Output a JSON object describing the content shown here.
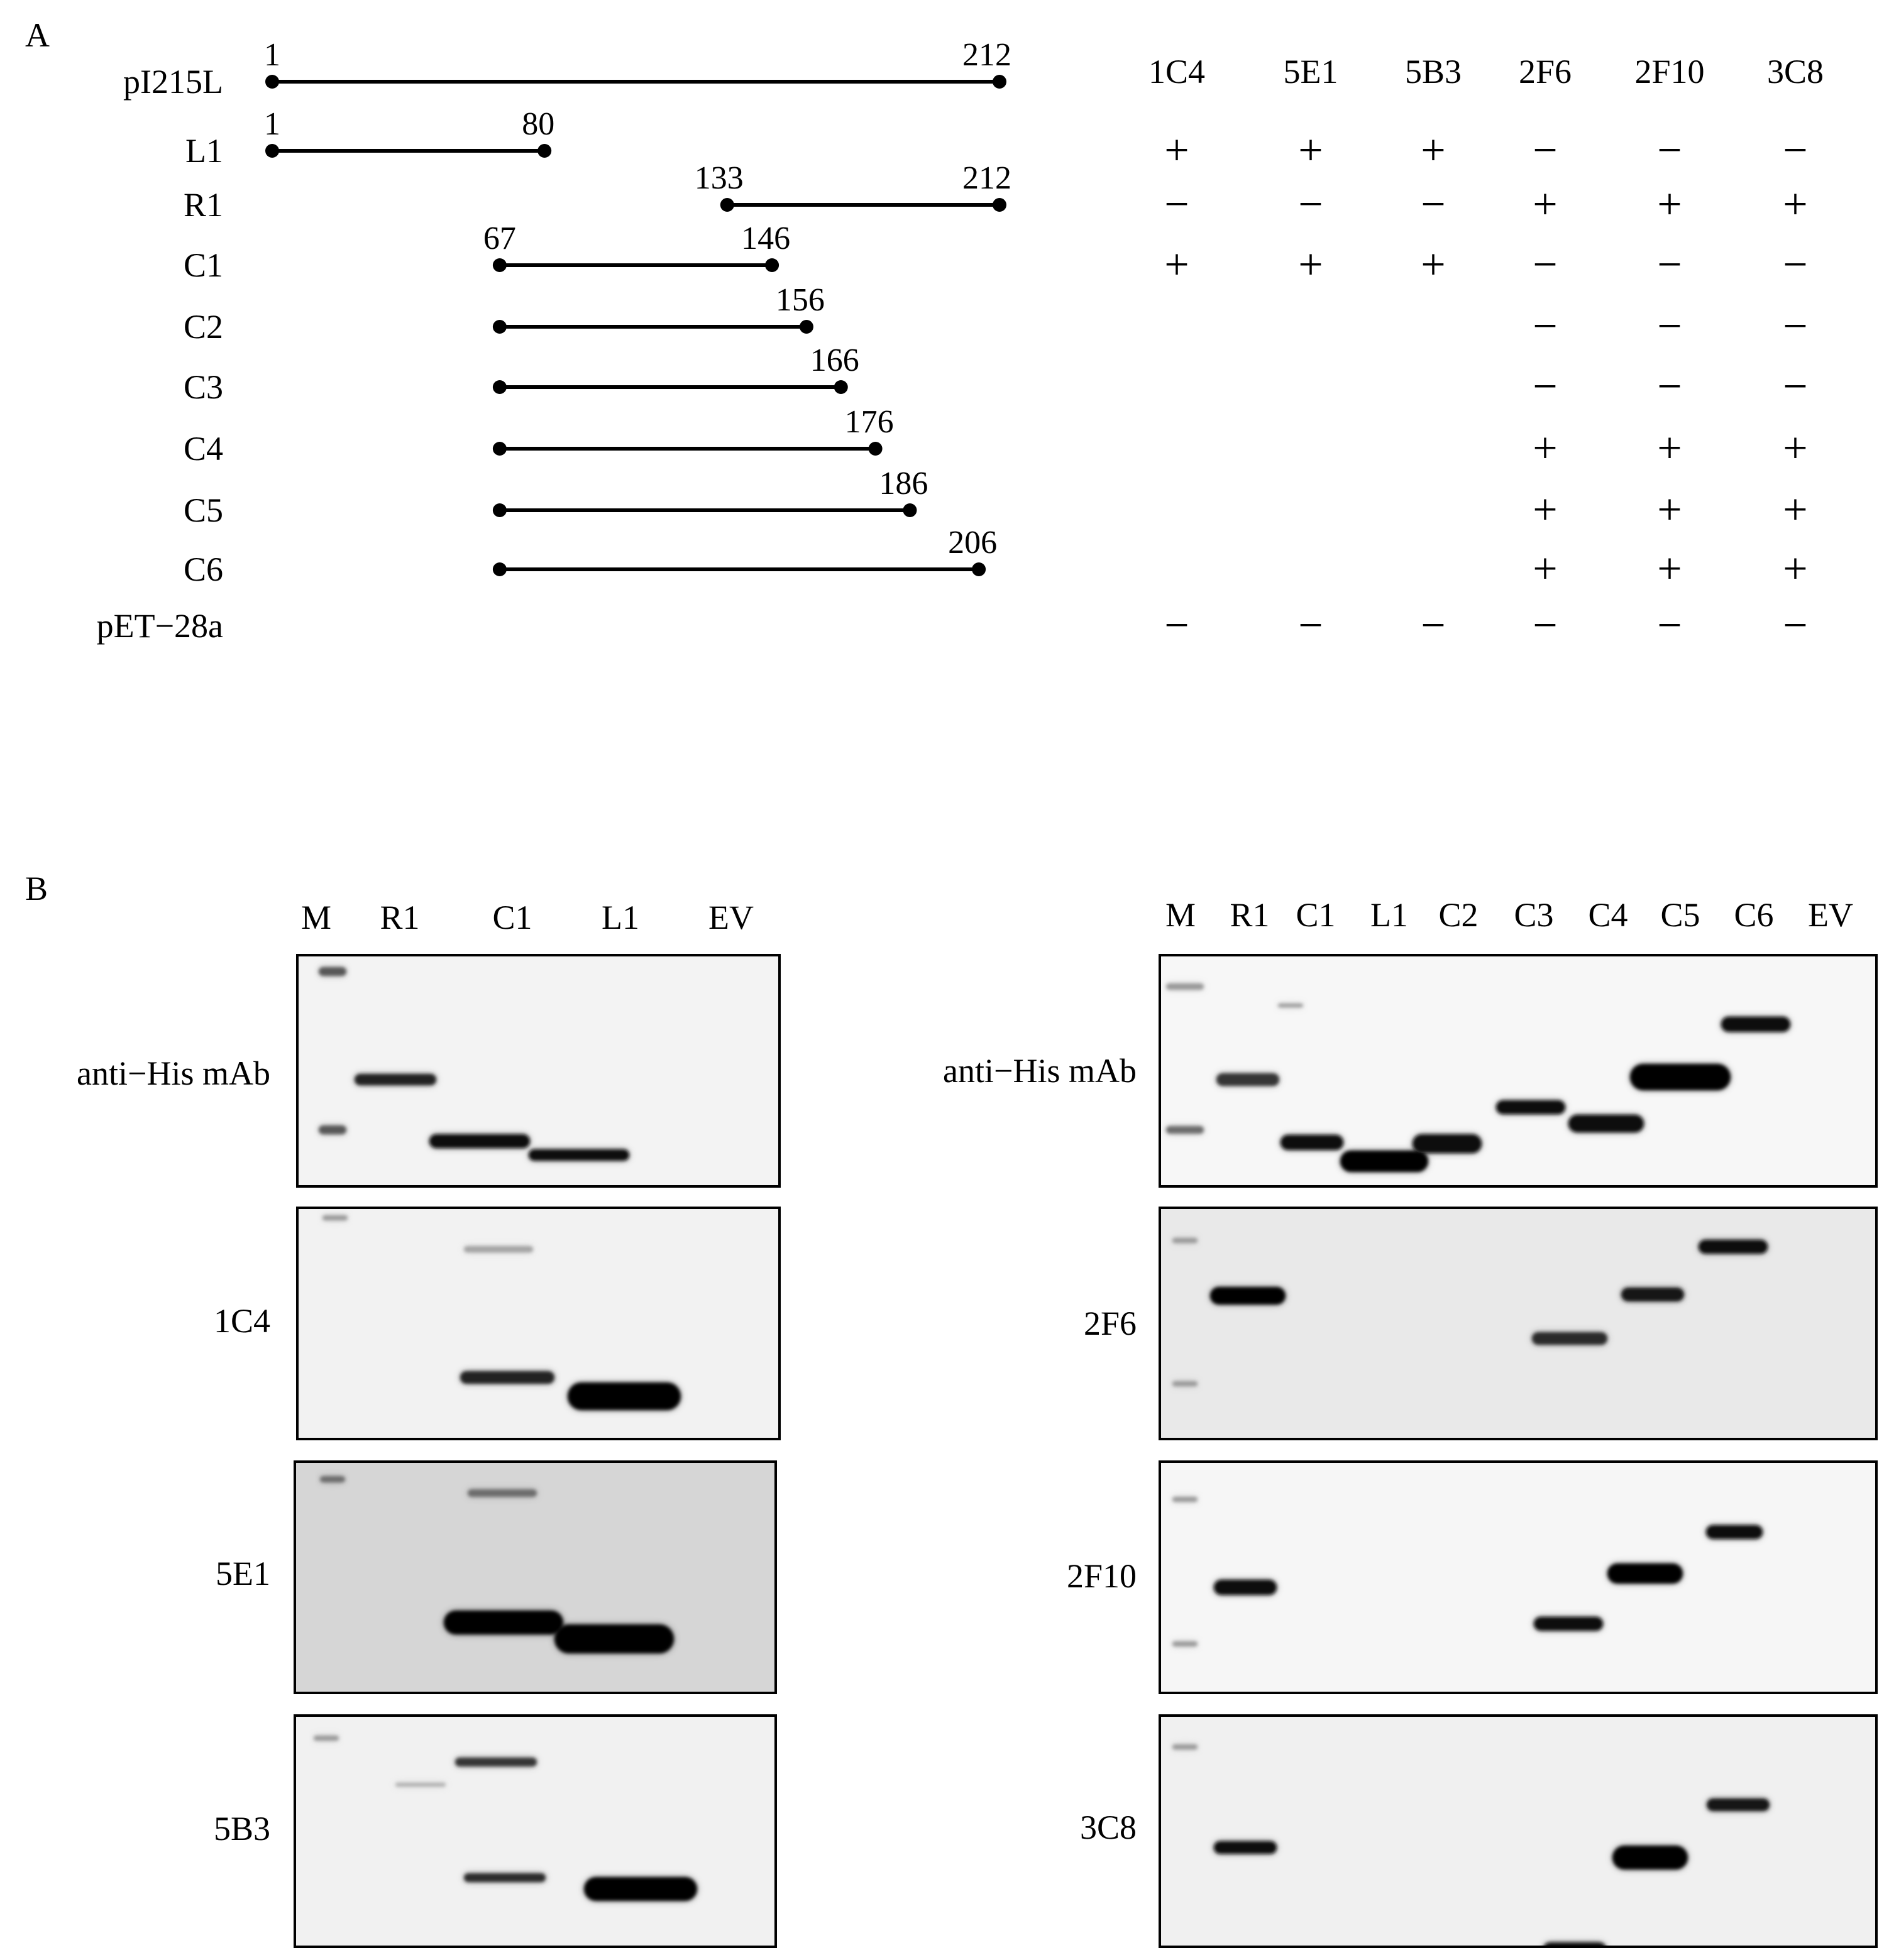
{
  "panel_a": {
    "label": "A",
    "constructs": [
      {
        "name": "pI215L",
        "start": 1,
        "end": 212,
        "start_label": "1",
        "end_label": "212"
      },
      {
        "name": "L1",
        "start": 1,
        "end": 80,
        "start_label": "1",
        "end_label": "80"
      },
      {
        "name": "R1",
        "start": 133,
        "end": 212,
        "start_label": "133",
        "end_label": "212"
      },
      {
        "name": "C1",
        "start": 67,
        "end": 146,
        "start_label": "67",
        "end_label": "146"
      },
      {
        "name": "C2",
        "start": 67,
        "end": 156,
        "start_label": "",
        "end_label": "156"
      },
      {
        "name": "C3",
        "start": 67,
        "end": 166,
        "start_label": "",
        "end_label": "166"
      },
      {
        "name": "C4",
        "start": 67,
        "end": 176,
        "start_label": "",
        "end_label": "176"
      },
      {
        "name": "C5",
        "start": 67,
        "end": 186,
        "start_label": "",
        "end_label": "186"
      },
      {
        "name": "C6",
        "start": 67,
        "end": 206,
        "start_label": "",
        "end_label": "206"
      },
      {
        "name": "pET−28a",
        "start": null,
        "end": null,
        "start_label": "",
        "end_label": ""
      }
    ],
    "antibodies": [
      "1C4",
      "5E1",
      "5B3",
      "2F6",
      "2F10",
      "3C8"
    ],
    "reactivity": [
      [
        "",
        "",
        "",
        "",
        "",
        ""
      ],
      [
        "+",
        "+",
        "+",
        "−",
        "−",
        "−"
      ],
      [
        "−",
        "−",
        "−",
        "+",
        "+",
        "+"
      ],
      [
        "+",
        "+",
        "+",
        "−",
        "−",
        "−"
      ],
      [
        "",
        "",
        "",
        "−",
        "−",
        "−"
      ],
      [
        "",
        "",
        "",
        "−",
        "−",
        "−"
      ],
      [
        "",
        "",
        "",
        "+",
        "+",
        "+"
      ],
      [
        "",
        "",
        "",
        "+",
        "+",
        "+"
      ],
      [
        "",
        "",
        "",
        "+",
        "+",
        "+"
      ],
      [
        "−",
        "−",
        "−",
        "−",
        "−",
        "−"
      ]
    ]
  },
  "panel_b": {
    "label": "B",
    "left": {
      "lanes": [
        "M",
        "R1",
        "C1",
        "L1",
        "EV"
      ],
      "blots": [
        {
          "label": "anti−His mAb",
          "background": "#f3f3f3"
        },
        {
          "label": "1C4",
          "background": "#f2f2f2"
        },
        {
          "label": "5E1",
          "background": "#d6d6d6"
        },
        {
          "label": "5B3",
          "background": "#f1f1f1"
        }
      ]
    },
    "right": {
      "lanes": [
        "M",
        "R1",
        "C1",
        "L1",
        "C2",
        "C3",
        "C4",
        "C5",
        "C6",
        "EV"
      ],
      "blots": [
        {
          "label": "anti−His mAb",
          "background": "#f7f7f7"
        },
        {
          "label": "2F6",
          "background": "#e9e9e9"
        },
        {
          "label": "2F10",
          "background": "#f6f6f6"
        },
        {
          "label": "3C8",
          "background": "#f0f0f0"
        }
      ]
    }
  }
}
